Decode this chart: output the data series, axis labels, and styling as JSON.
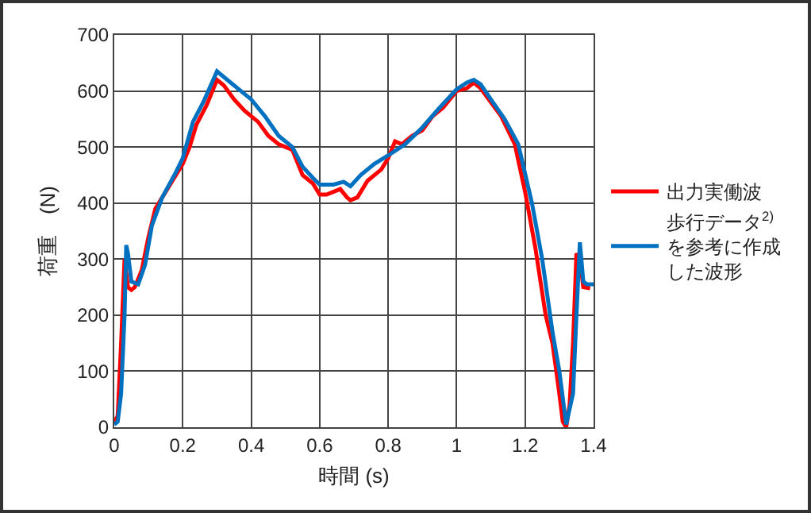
{
  "chart_data": {
    "type": "line",
    "xlabel": "時間 (s)",
    "ylabel": "荷重　(N)",
    "xlim": [
      0,
      1.4
    ],
    "xticks": [
      0,
      0.2,
      0.4,
      0.6,
      0.8,
      1,
      1.2,
      1.4
    ],
    "ylim": [
      0,
      700
    ],
    "yticks": [
      0,
      100,
      200,
      300,
      400,
      500,
      600,
      700
    ],
    "grid": true,
    "legend": "right",
    "marker": "none",
    "line_style": "solid",
    "series": [
      {
        "name": "出力実働波",
        "color": "#ff0000",
        "x": [
          0,
          0.01,
          0.02,
          0.03,
          0.04,
          0.05,
          0.06,
          0.08,
          0.1,
          0.12,
          0.15,
          0.2,
          0.22,
          0.24,
          0.27,
          0.3,
          0.32,
          0.35,
          0.38,
          0.42,
          0.45,
          0.48,
          0.52,
          0.55,
          0.58,
          0.6,
          0.62,
          0.66,
          0.68,
          0.69,
          0.71,
          0.74,
          0.78,
          0.8,
          0.82,
          0.84,
          0.87,
          0.9,
          0.93,
          0.96,
          0.98,
          1.0,
          1.03,
          1.05,
          1.07,
          1.1,
          1.13,
          1.17,
          1.2,
          1.23,
          1.26,
          1.28,
          1.3,
          1.31,
          1.32,
          1.33,
          1.34,
          1.35,
          1.36,
          1.37,
          1.39
        ],
        "values": [
          10,
          20,
          150,
          300,
          250,
          245,
          250,
          280,
          340,
          390,
          420,
          470,
          500,
          540,
          575,
          620,
          610,
          585,
          565,
          545,
          520,
          505,
          495,
          450,
          435,
          415,
          415,
          425,
          410,
          405,
          410,
          440,
          460,
          480,
          510,
          505,
          520,
          530,
          555,
          570,
          585,
          600,
          605,
          615,
          605,
          580,
          555,
          505,
          420,
          320,
          200,
          150,
          60,
          10,
          0,
          40,
          150,
          310,
          300,
          250,
          248
        ]
      },
      {
        "name": "歩行データ$^{2)}$を参考に作成した波形",
        "color": "#0070c0",
        "x": [
          0,
          0.01,
          0.02,
          0.03,
          0.035,
          0.04,
          0.05,
          0.07,
          0.09,
          0.11,
          0.14,
          0.18,
          0.2,
          0.23,
          0.26,
          0.3,
          0.33,
          0.37,
          0.4,
          0.44,
          0.48,
          0.52,
          0.55,
          0.58,
          0.6,
          0.64,
          0.67,
          0.69,
          0.72,
          0.76,
          0.8,
          0.85,
          0.9,
          0.95,
          1.0,
          1.03,
          1.05,
          1.07,
          1.1,
          1.14,
          1.18,
          1.22,
          1.25,
          1.28,
          1.3,
          1.32,
          1.34,
          1.35,
          1.36,
          1.37,
          1.38,
          1.4
        ],
        "values": [
          5,
          10,
          60,
          200,
          325,
          310,
          260,
          255,
          290,
          360,
          410,
          455,
          480,
          545,
          580,
          635,
          620,
          600,
          585,
          555,
          520,
          500,
          465,
          445,
          433,
          433,
          438,
          430,
          450,
          470,
          485,
          505,
          535,
          570,
          603,
          615,
          620,
          612,
          585,
          550,
          505,
          400,
          300,
          170,
          100,
          5,
          60,
          200,
          330,
          260,
          255,
          255
        ]
      }
    ]
  }
}
